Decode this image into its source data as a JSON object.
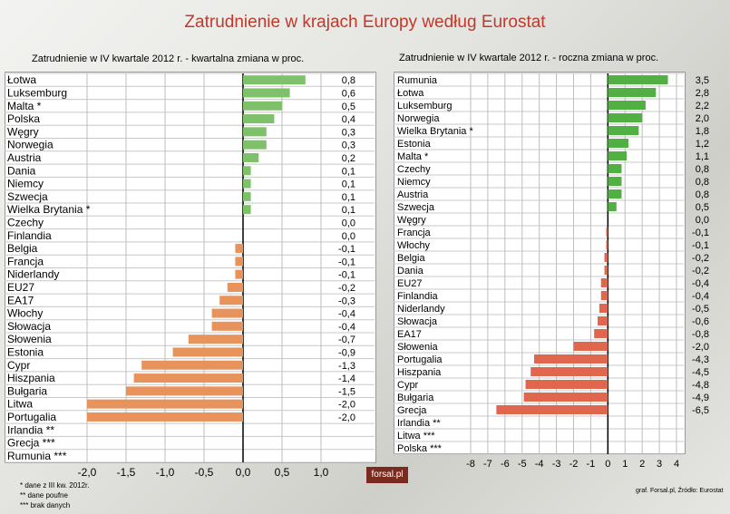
{
  "title": "Zatrudnienie w krajach Europy według Eurostat",
  "footnotes": [
    "* dane z III kw. 2012r.",
    "** dane poufne",
    "*** brak danych"
  ],
  "logo_text": "forsal.pl",
  "source": "graf. Forsal.pl, Źródło: Eurostat",
  "colors": {
    "title": "#c0392b",
    "left_positive": "#7fc06a",
    "left_negative": "#e8925c",
    "right_positive": "#52b043",
    "right_negative": "#e0664e"
  },
  "chart_data": [
    {
      "type": "bar",
      "orientation": "horizontal",
      "title": "Zatrudnienie w IV kwartale 2012 r. - kwartalna zmiana w proc.",
      "categories": [
        "Łotwa",
        "Luksemburg",
        "Malta *",
        "Polska",
        "Węgry",
        "Norwegia",
        "Austria",
        "Dania",
        "Niemcy",
        "Szwecja",
        "Wielka Brytania *",
        "Czechy",
        "Finlandia",
        "Belgia",
        "Francja",
        "Niderlandy",
        "EU27",
        "EA17",
        "Włochy",
        "Słowacja",
        "Słowenia",
        "Estonia",
        "Cypr",
        "Hiszpania",
        "Bułgaria",
        "Litwa",
        "Portugalia",
        "Irlandia **",
        "Grecja ***",
        "Rumunia ***"
      ],
      "values": [
        0.8,
        0.6,
        0.5,
        0.4,
        0.3,
        0.3,
        0.2,
        0.1,
        0.1,
        0.1,
        0.1,
        0.0,
        0.0,
        -0.1,
        -0.1,
        -0.1,
        -0.2,
        -0.3,
        -0.4,
        -0.4,
        -0.7,
        -0.9,
        -1.3,
        -1.4,
        -1.5,
        -2.0,
        -2.0,
        null,
        null,
        null
      ],
      "value_labels": [
        "0,8",
        "0,6",
        "0,5",
        "0,4",
        "0,3",
        "0,3",
        "0,2",
        "0,1",
        "0,1",
        "0,1",
        "0,1",
        "0,0",
        "0,0",
        "-0,1",
        "-0,1",
        "-0,1",
        "-0,2",
        "-0,3",
        "-0,4",
        "-0,4",
        "-0,7",
        "-0,9",
        "-1,3",
        "-1,4",
        "-1,5",
        "-2,0",
        "-2,0",
        "",
        "",
        ""
      ],
      "xlim": [
        -2.0,
        1.0
      ],
      "xticks": [
        -2.0,
        -1.5,
        -1.0,
        -0.5,
        0.0,
        0.5,
        1.0
      ],
      "xtick_labels": [
        "-2,0",
        "-1,5",
        "-1,0",
        "-0,5",
        "0,0",
        "0,5",
        "1,0"
      ],
      "grid": true
    },
    {
      "type": "bar",
      "orientation": "horizontal",
      "title": "Zatrudnienie w IV kwartale 2012 r. - roczna zmiana w proc.",
      "categories": [
        "Rumunia",
        "Łotwa",
        "Luksemburg",
        "Norwegia",
        "Wielka Brytania *",
        "Estonia",
        "Malta *",
        "Czechy",
        "Niemcy",
        "Austria",
        "Szwecja",
        "Węgry",
        "Francja",
        "Włochy",
        "Belgia",
        "Dania",
        "EU27",
        "Finlandia",
        "Niderlandy",
        "Słowacja",
        "EA17",
        "Słowenia",
        "Portugalia",
        "Hiszpania",
        "Cypr",
        "Bułgaria",
        "Grecja",
        "Irlandia **",
        "Litwa ***",
        "Polska ***"
      ],
      "values": [
        3.5,
        2.8,
        2.2,
        2.0,
        1.8,
        1.2,
        1.1,
        0.8,
        0.8,
        0.8,
        0.5,
        0.0,
        -0.1,
        -0.1,
        -0.2,
        -0.2,
        -0.4,
        -0.4,
        -0.5,
        -0.6,
        -0.8,
        -2.0,
        -4.3,
        -4.5,
        -4.8,
        -4.9,
        -6.5,
        null,
        null,
        null
      ],
      "value_labels": [
        "3,5",
        "2,8",
        "2,2",
        "2,0",
        "1,8",
        "1,2",
        "1,1",
        "0,8",
        "0,8",
        "0,8",
        "0,5",
        "0,0",
        "-0,1",
        "-0,1",
        "-0,2",
        "-0,2",
        "-0,4",
        "-0,4",
        "-0,5",
        "-0,6",
        "-0,8",
        "-2,0",
        "-4,3",
        "-4,5",
        "-4,8",
        "-4,9",
        "-6,5",
        "",
        "",
        ""
      ],
      "xlim": [
        -8,
        4
      ],
      "xticks": [
        -8,
        -7,
        -6,
        -5,
        -4,
        -3,
        -2,
        -1,
        0,
        1,
        2,
        3,
        4
      ],
      "xtick_labels": [
        "-8",
        "-7",
        "-6",
        "-5",
        "-4",
        "-3",
        "-2",
        "-1",
        "0",
        "1",
        "2",
        "3",
        "4"
      ],
      "grid": true
    }
  ]
}
